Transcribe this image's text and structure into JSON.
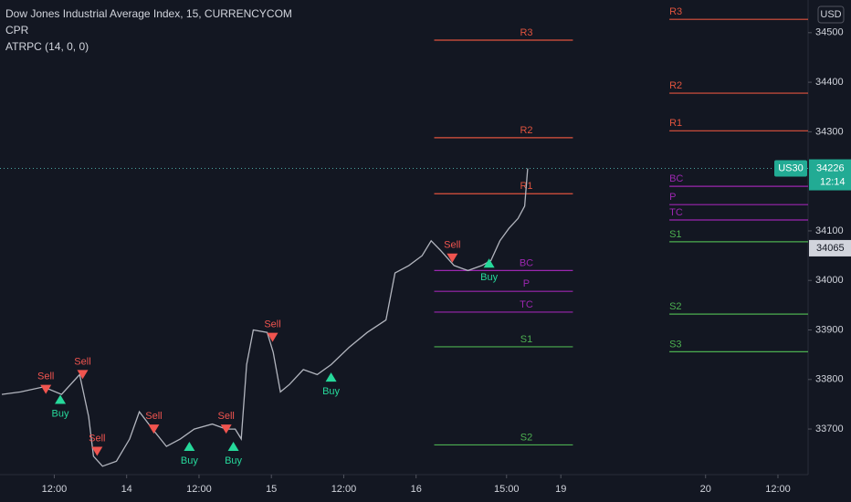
{
  "header": {
    "title": "Dow Jones Industrial Average Index, 15, CURRENCYCOM",
    "indicators": [
      "CPR",
      "ATRPC (14, 0, 0)"
    ],
    "currency": "USD"
  },
  "chart_data": {
    "type": "line",
    "color": "#b2b5be",
    "x": [
      3.3,
      6.4,
      10.2,
      13.2,
      16.2,
      17.7,
      18.5,
      20,
      22.3,
      24.5,
      26.1,
      28.3,
      30.6,
      32.9,
      35.2,
      38.2,
      40.5,
      42,
      43,
      43.9,
      45,
      47.3,
      48.3,
      49.5,
      51,
      53.3,
      55.6,
      57.9,
      60.9,
      63.9,
      67,
      68.5,
      70.8,
      73,
      74.5,
      76.1,
      78.3,
      80.6,
      82.9,
      84.4,
      85.9,
      87.4,
      88.9,
      90,
      90.5
    ],
    "values": [
      33770,
      33775,
      33785,
      33770,
      33810,
      33725,
      33645,
      33625,
      33635,
      33680,
      33735,
      33700,
      33665,
      33680,
      33700,
      33710,
      33700,
      33700,
      33680,
      33830,
      33900,
      33895,
      33855,
      33775,
      33790,
      33820,
      33810,
      33830,
      33865,
      33895,
      33920,
      34015,
      34030,
      34050,
      34080,
      34060,
      34030,
      34020,
      34030,
      34040,
      34080,
      34105,
      34125,
      34150,
      34226
    ],
    "levels": [
      {
        "label": "R3",
        "value": 34485,
        "color": "#e0533e",
        "x": [
          75,
          98
        ]
      },
      {
        "label": "R2",
        "value": 34288,
        "color": "#e0533e",
        "x": [
          75,
          98
        ]
      },
      {
        "label": "R1",
        "value": 34175,
        "color": "#e0533e",
        "x": [
          75,
          98
        ]
      },
      {
        "label": "BC",
        "value": 34020,
        "color": "#9c27b0",
        "x": [
          75,
          98
        ]
      },
      {
        "label": "P",
        "value": 33978,
        "color": "#9c27b0",
        "x": [
          75,
          98
        ]
      },
      {
        "label": "TC",
        "value": 33936,
        "color": "#9c27b0",
        "x": [
          75,
          98
        ]
      },
      {
        "label": "S1",
        "value": 33866,
        "color": "#4caf50",
        "x": [
          75,
          98
        ]
      },
      {
        "label": "S2",
        "value": 33668,
        "color": "#4caf50",
        "x": [
          75,
          98
        ]
      },
      {
        "label": "R3",
        "value": 34527,
        "color": "#e0533e",
        "x": [
          114,
          137
        ]
      },
      {
        "label": "R2",
        "value": 34378,
        "color": "#e0533e",
        "x": [
          114,
          137
        ]
      },
      {
        "label": "R1",
        "value": 34302,
        "color": "#e0533e",
        "x": [
          114,
          137
        ]
      },
      {
        "label": "BC",
        "value": 34190,
        "color": "#9c27b0",
        "x": [
          114,
          137
        ]
      },
      {
        "label": "P",
        "value": 34153,
        "color": "#9c27b0",
        "x": [
          114,
          137
        ]
      },
      {
        "label": "TC",
        "value": 34122,
        "color": "#9c27b0",
        "x": [
          114,
          137
        ]
      },
      {
        "label": "S1",
        "value": 34078,
        "color": "#4caf50",
        "x": [
          114,
          137
        ]
      },
      {
        "label": "S2",
        "value": 33932,
        "color": "#4caf50",
        "x": [
          114,
          137
        ]
      },
      {
        "label": "S3",
        "value": 33856,
        "color": "#4caf50",
        "x": [
          114,
          137
        ]
      }
    ],
    "signals": [
      {
        "label": "Sell",
        "x": 10.6,
        "value": 33780
      },
      {
        "label": "Buy",
        "x": 13,
        "value": 33760
      },
      {
        "label": "Sell",
        "x": 16.7,
        "value": 33810
      },
      {
        "label": "Sell",
        "x": 19.1,
        "value": 33655
      },
      {
        "label": "Sell",
        "x": 28.5,
        "value": 33700
      },
      {
        "label": "Buy",
        "x": 34.4,
        "value": 33665
      },
      {
        "label": "Sell",
        "x": 40.5,
        "value": 33700
      },
      {
        "label": "Buy",
        "x": 41.7,
        "value": 33665
      },
      {
        "label": "Sell",
        "x": 48.2,
        "value": 33885
      },
      {
        "label": "Buy",
        "x": 57.9,
        "value": 33805
      },
      {
        "label": "Sell",
        "x": 78,
        "value": 34045
      },
      {
        "label": "Buy",
        "x": 84.1,
        "value": 34035
      }
    ],
    "xlim": [
      3,
      137
    ],
    "ylim": [
      33608,
      34566
    ],
    "xticks": [
      {
        "value": 12,
        "label": "12:00"
      },
      {
        "value": 24,
        "label": "14"
      },
      {
        "value": 36,
        "label": "12:00"
      },
      {
        "value": 48,
        "label": "15"
      },
      {
        "value": 60,
        "label": "12:00"
      },
      {
        "value": 72,
        "label": "16"
      },
      {
        "value": 87,
        "label": "15:00"
      },
      {
        "value": 96,
        "label": "19"
      },
      {
        "value": 120,
        "label": "20"
      },
      {
        "value": 132,
        "label": "12:00"
      }
    ],
    "yticks": [
      34500,
      34400,
      34300,
      34100,
      34000,
      33900,
      33800,
      33700
    ],
    "symbol": "US30",
    "last_price": 34226,
    "countdown": "12:14",
    "marker_price": 34065
  }
}
